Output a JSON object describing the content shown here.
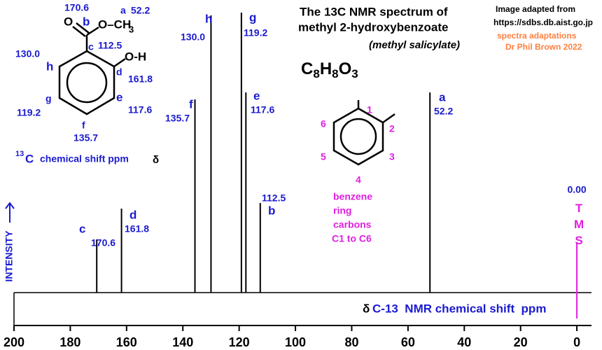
{
  "chart_data": {
    "type": "spectrum",
    "title": [
      "The 13C NMR spectrum of",
      "methyl 2-hydroxybenzoate"
    ],
    "subtitle": "(methyl salicylate)",
    "formula": [
      "C",
      "8",
      "H",
      "8",
      "O",
      "3"
    ],
    "credits": [
      "Image adapted from",
      "https://sdbs.db.aist.go.jp",
      "spectra adaptations",
      "Dr Phil Brown 2022"
    ],
    "ylabel": "INTENSITY",
    "xlabel_symbol": "δ",
    "xlabel": "C-13  NMR chemical shift  ppm",
    "xlim": [
      200,
      -5.2
    ],
    "xticks": [
      200,
      180,
      160,
      140,
      120,
      100,
      80,
      60,
      40,
      20,
      0
    ],
    "ylim": [
      0,
      100
    ],
    "x": [
      170.6,
      161.8,
      135.7,
      130.0,
      119.2,
      117.6,
      112.5,
      52.2
    ],
    "values": [
      19,
      30,
      69,
      99,
      100,
      71.5,
      32,
      71.5
    ],
    "x_labels": [
      "170.6",
      "161.8",
      "135.7",
      "130.0",
      "119.2",
      "117.6",
      "112.5",
      "52.2"
    ],
    "peak_letters": [
      "c",
      "d",
      "f",
      "h",
      "g",
      "e",
      "b",
      "a"
    ],
    "color": "#000000",
    "reference": {
      "name": "TMS",
      "x": 0,
      "label": "0.00",
      "value": 18,
      "color": "#e020e0"
    },
    "structure_labels": [
      "170.6",
      "b",
      "a",
      "52.2",
      "c",
      "112.5",
      "130.0",
      "h",
      "d",
      "161.8",
      "g",
      "e",
      "119.2",
      "117.6",
      "f",
      "135.7"
    ],
    "atoms": [
      "O",
      "O–CH",
      "3",
      "O-H"
    ],
    "shift_note": [
      "13",
      "C",
      "chemical shift ppm",
      "δ"
    ],
    "ring_numbers": [
      "1",
      "2",
      "3",
      "4",
      "5",
      "6"
    ],
    "ring_note": [
      "benzene",
      "ring",
      "carbons",
      "C1 to C6"
    ]
  }
}
